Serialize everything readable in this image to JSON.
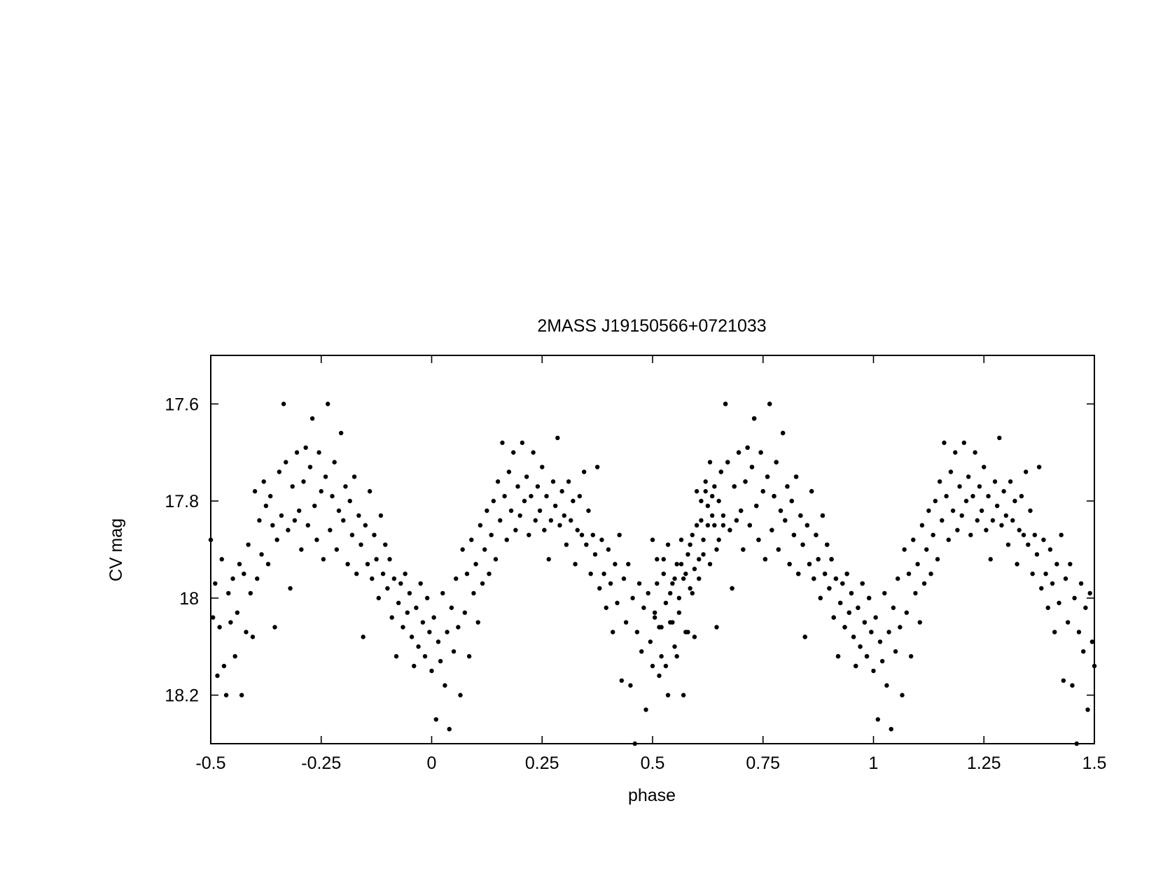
{
  "chart_data": {
    "type": "scatter",
    "title": "2MASS J19150566+0721033",
    "xlabel": "phase",
    "ylabel": "CV mag",
    "xlim": [
      -0.5,
      1.5
    ],
    "ylim": [
      18.3,
      17.5
    ],
    "y_axis_inverted": true,
    "grid": false,
    "legend": "none",
    "xticks": [
      -0.5,
      -0.25,
      0,
      0.25,
      0.5,
      0.75,
      1,
      1.25,
      1.5
    ],
    "xtick_labels": [
      "-0.5",
      "-0.25",
      "0",
      "0.25",
      "0.5",
      "0.75",
      "1",
      "1.25",
      "1.5"
    ],
    "yticks": [
      17.6,
      17.8,
      18,
      18.2
    ],
    "ytick_labels": [
      "17.6",
      "17.8",
      "18",
      "18.2"
    ],
    "marker_color": "#000000",
    "period_repeat": 1,
    "series": [
      {
        "points": [
          [
            -0.5,
            17.88
          ],
          [
            -0.495,
            18.04
          ],
          [
            -0.49,
            17.97
          ],
          [
            -0.485,
            18.16
          ],
          [
            -0.48,
            18.06
          ],
          [
            -0.475,
            17.92
          ],
          [
            -0.47,
            18.14
          ],
          [
            -0.465,
            18.2
          ],
          [
            -0.46,
            17.99
          ],
          [
            -0.455,
            18.05
          ],
          [
            -0.45,
            17.96
          ],
          [
            -0.445,
            18.12
          ],
          [
            -0.44,
            18.03
          ],
          [
            -0.435,
            17.93
          ],
          [
            -0.43,
            18.2
          ],
          [
            -0.425,
            17.95
          ],
          [
            -0.42,
            18.07
          ],
          [
            -0.415,
            17.89
          ],
          [
            -0.41,
            17.99
          ],
          [
            -0.405,
            18.08
          ],
          [
            -0.4,
            17.78
          ],
          [
            -0.395,
            17.96
          ],
          [
            -0.39,
            17.84
          ],
          [
            -0.385,
            17.91
          ],
          [
            -0.38,
            17.76
          ],
          [
            -0.375,
            17.81
          ],
          [
            -0.37,
            17.93
          ],
          [
            -0.365,
            17.79
          ],
          [
            -0.36,
            17.85
          ],
          [
            -0.355,
            18.06
          ],
          [
            -0.35,
            17.88
          ],
          [
            -0.345,
            17.74
          ],
          [
            -0.34,
            17.83
          ],
          [
            -0.335,
            17.6
          ],
          [
            -0.33,
            17.72
          ],
          [
            -0.325,
            17.86
          ],
          [
            -0.32,
            17.98
          ],
          [
            -0.315,
            17.77
          ],
          [
            -0.31,
            17.84
          ],
          [
            -0.305,
            17.7
          ],
          [
            -0.3,
            17.82
          ],
          [
            -0.295,
            17.9
          ],
          [
            -0.29,
            17.76
          ],
          [
            -0.285,
            17.69
          ],
          [
            -0.28,
            17.85
          ],
          [
            -0.275,
            17.73
          ],
          [
            -0.27,
            17.63
          ],
          [
            -0.265,
            17.81
          ],
          [
            -0.26,
            17.88
          ],
          [
            -0.255,
            17.7
          ],
          [
            -0.25,
            17.78
          ],
          [
            -0.245,
            17.92
          ],
          [
            -0.24,
            17.75
          ],
          [
            -0.235,
            17.6
          ],
          [
            -0.23,
            17.86
          ],
          [
            -0.225,
            17.79
          ],
          [
            -0.22,
            17.72
          ],
          [
            -0.215,
            17.9
          ],
          [
            -0.21,
            17.82
          ],
          [
            -0.205,
            17.66
          ],
          [
            -0.2,
            17.84
          ],
          [
            -0.195,
            17.77
          ],
          [
            -0.19,
            17.93
          ],
          [
            -0.185,
            17.8
          ],
          [
            -0.18,
            17.87
          ],
          [
            -0.175,
            17.75
          ],
          [
            -0.17,
            17.95
          ],
          [
            -0.165,
            17.83
          ],
          [
            -0.16,
            17.89
          ],
          [
            -0.155,
            18.08
          ],
          [
            -0.15,
            17.85
          ],
          [
            -0.145,
            17.93
          ],
          [
            -0.14,
            17.78
          ],
          [
            -0.135,
            17.96
          ],
          [
            -0.13,
            17.87
          ],
          [
            -0.125,
            17.92
          ],
          [
            -0.12,
            18.0
          ],
          [
            -0.115,
            17.83
          ],
          [
            -0.11,
            17.95
          ],
          [
            -0.105,
            17.89
          ],
          [
            -0.1,
            17.98
          ],
          [
            -0.095,
            17.92
          ],
          [
            -0.09,
            18.04
          ],
          [
            -0.085,
            17.96
          ],
          [
            -0.08,
            18.12
          ],
          [
            -0.075,
            18.01
          ],
          [
            -0.07,
            17.97
          ],
          [
            -0.065,
            18.06
          ],
          [
            -0.06,
            17.95
          ],
          [
            -0.055,
            18.03
          ],
          [
            -0.05,
            17.99
          ],
          [
            -0.045,
            18.08
          ],
          [
            -0.04,
            18.14
          ],
          [
            -0.035,
            18.02
          ],
          [
            -0.03,
            18.1
          ],
          [
            -0.025,
            17.97
          ],
          [
            -0.02,
            18.05
          ],
          [
            -0.015,
            18.12
          ],
          [
            -0.01,
            18.0
          ],
          [
            -0.005,
            18.07
          ],
          [
            0.0,
            18.15
          ],
          [
            0.005,
            18.04
          ],
          [
            0.01,
            18.25
          ],
          [
            0.015,
            18.09
          ],
          [
            0.02,
            18.13
          ],
          [
            0.025,
            17.99
          ],
          [
            0.03,
            18.18
          ],
          [
            0.035,
            18.07
          ],
          [
            0.04,
            18.27
          ],
          [
            0.045,
            18.02
          ],
          [
            0.05,
            18.11
          ],
          [
            0.055,
            17.96
          ],
          [
            0.06,
            18.06
          ],
          [
            0.065,
            18.2
          ],
          [
            0.07,
            17.9
          ],
          [
            0.075,
            18.03
          ],
          [
            0.08,
            17.95
          ],
          [
            0.085,
            18.12
          ],
          [
            0.09,
            17.88
          ],
          [
            0.095,
            17.99
          ],
          [
            0.1,
            17.93
          ],
          [
            0.105,
            18.05
          ],
          [
            0.11,
            17.85
          ],
          [
            0.115,
            17.97
          ],
          [
            0.12,
            17.9
          ],
          [
            0.125,
            17.82
          ],
          [
            0.13,
            17.95
          ],
          [
            0.135,
            17.87
          ],
          [
            0.14,
            17.8
          ],
          [
            0.145,
            17.92
          ],
          [
            0.15,
            17.76
          ],
          [
            0.155,
            17.84
          ],
          [
            0.16,
            17.68
          ],
          [
            0.165,
            17.79
          ],
          [
            0.17,
            17.88
          ],
          [
            0.175,
            17.74
          ],
          [
            0.18,
            17.82
          ],
          [
            0.185,
            17.7
          ],
          [
            0.19,
            17.86
          ],
          [
            0.195,
            17.77
          ],
          [
            0.2,
            17.83
          ],
          [
            0.205,
            17.68
          ],
          [
            0.21,
            17.8
          ],
          [
            0.215,
            17.75
          ],
          [
            0.22,
            17.87
          ],
          [
            0.225,
            17.79
          ],
          [
            0.23,
            17.7
          ],
          [
            0.235,
            17.84
          ],
          [
            0.24,
            17.77
          ],
          [
            0.245,
            17.82
          ],
          [
            0.25,
            17.73
          ],
          [
            0.255,
            17.86
          ],
          [
            0.26,
            17.79
          ],
          [
            0.265,
            17.92
          ],
          [
            0.27,
            17.84
          ],
          [
            0.275,
            17.76
          ],
          [
            0.28,
            17.81
          ],
          [
            0.285,
            17.67
          ],
          [
            0.29,
            17.85
          ],
          [
            0.295,
            17.78
          ],
          [
            0.3,
            17.83
          ],
          [
            0.305,
            17.89
          ],
          [
            0.31,
            17.76
          ],
          [
            0.315,
            17.84
          ],
          [
            0.32,
            17.8
          ],
          [
            0.325,
            17.93
          ],
          [
            0.33,
            17.86
          ],
          [
            0.335,
            17.79
          ],
          [
            0.34,
            17.87
          ],
          [
            0.345,
            17.74
          ],
          [
            0.35,
            17.89
          ],
          [
            0.355,
            17.82
          ],
          [
            0.36,
            17.95
          ],
          [
            0.365,
            17.87
          ],
          [
            0.37,
            17.91
          ],
          [
            0.375,
            17.73
          ],
          [
            0.38,
            17.98
          ],
          [
            0.385,
            17.88
          ],
          [
            0.39,
            17.95
          ],
          [
            0.395,
            18.02
          ],
          [
            0.4,
            17.9
          ],
          [
            0.405,
            17.97
          ],
          [
            0.41,
            18.07
          ],
          [
            0.415,
            17.93
          ],
          [
            0.42,
            18.01
          ],
          [
            0.425,
            17.87
          ],
          [
            0.43,
            18.17
          ],
          [
            0.435,
            17.96
          ],
          [
            0.44,
            18.05
          ],
          [
            0.445,
            17.93
          ],
          [
            0.45,
            18.18
          ],
          [
            0.455,
            18.0
          ],
          [
            0.46,
            18.3
          ],
          [
            0.465,
            18.07
          ],
          [
            0.47,
            17.97
          ],
          [
            0.475,
            18.11
          ],
          [
            0.48,
            18.02
          ],
          [
            0.485,
            18.23
          ],
          [
            0.49,
            17.99
          ],
          [
            0.495,
            18.09
          ],
          [
            0.5,
            18.14
          ],
          [
            0.505,
            18.03
          ],
          [
            0.51,
            17.92
          ],
          [
            0.515,
            18.06
          ],
          [
            0.52,
            18.12
          ],
          [
            0.525,
            17.95
          ],
          [
            0.53,
            18.01
          ],
          [
            0.535,
            17.89
          ],
          [
            0.54,
            18.05
          ],
          [
            0.545,
            17.97
          ],
          [
            0.55,
            18.1
          ],
          [
            0.555,
            17.93
          ],
          [
            0.56,
            18.0
          ],
          [
            0.565,
            17.88
          ],
          [
            0.57,
            17.96
          ],
          [
            0.575,
            18.07
          ],
          [
            0.58,
            17.91
          ],
          [
            0.585,
            17.98
          ],
          [
            0.59,
            17.87
          ],
          [
            0.595,
            17.94
          ],
          [
            0.6,
            17.85
          ],
          [
            0.605,
            17.92
          ],
          [
            0.61,
            17.8
          ],
          [
            0.615,
            17.88
          ],
          [
            0.62,
            17.78
          ],
          [
            0.625,
            17.85
          ],
          [
            0.63,
            17.72
          ],
          [
            0.635,
            17.83
          ],
          [
            0.64,
            17.77
          ],
          [
            0.645,
            17.9
          ],
          [
            0.65,
            17.8
          ],
          [
            0.655,
            17.74
          ],
          [
            0.66,
            17.85
          ],
          [
            0.665,
            17.6
          ],
          [
            0.67,
            17.72
          ],
          [
            0.675,
            17.86
          ],
          [
            0.68,
            17.98
          ],
          [
            0.685,
            17.77
          ],
          [
            0.69,
            17.84
          ],
          [
            0.695,
            17.7
          ],
          [
            0.7,
            17.82
          ],
          [
            0.705,
            17.9
          ],
          [
            0.71,
            17.76
          ],
          [
            0.715,
            17.69
          ],
          [
            0.72,
            17.85
          ],
          [
            0.725,
            17.73
          ],
          [
            0.73,
            17.63
          ],
          [
            0.735,
            17.81
          ],
          [
            0.74,
            17.88
          ],
          [
            0.745,
            17.7
          ],
          [
            0.75,
            17.78
          ],
          [
            0.755,
            17.92
          ],
          [
            0.76,
            17.75
          ],
          [
            0.765,
            17.6
          ],
          [
            0.77,
            17.86
          ],
          [
            0.775,
            17.79
          ],
          [
            0.78,
            17.72
          ],
          [
            0.785,
            17.9
          ],
          [
            0.79,
            17.82
          ],
          [
            0.795,
            17.66
          ],
          [
            0.8,
            17.84
          ],
          [
            0.805,
            17.77
          ],
          [
            0.81,
            17.93
          ],
          [
            0.815,
            17.8
          ],
          [
            0.82,
            17.87
          ],
          [
            0.825,
            17.75
          ],
          [
            0.83,
            17.95
          ],
          [
            0.835,
            17.83
          ],
          [
            0.84,
            17.89
          ],
          [
            0.845,
            18.08
          ],
          [
            0.85,
            17.85
          ],
          [
            0.855,
            17.93
          ],
          [
            0.86,
            17.78
          ],
          [
            0.865,
            17.96
          ],
          [
            0.87,
            17.87
          ],
          [
            0.875,
            17.92
          ],
          [
            0.88,
            18.0
          ],
          [
            0.885,
            17.83
          ],
          [
            0.89,
            17.95
          ],
          [
            0.895,
            17.89
          ],
          [
            0.9,
            17.98
          ],
          [
            0.905,
            17.92
          ],
          [
            0.91,
            18.04
          ],
          [
            0.915,
            17.96
          ],
          [
            0.92,
            18.12
          ],
          [
            0.925,
            18.01
          ],
          [
            0.93,
            17.97
          ],
          [
            0.935,
            18.06
          ],
          [
            0.94,
            17.95
          ],
          [
            0.945,
            18.03
          ],
          [
            0.95,
            17.99
          ],
          [
            0.955,
            18.08
          ],
          [
            0.96,
            18.14
          ],
          [
            0.965,
            18.02
          ],
          [
            0.97,
            18.1
          ],
          [
            0.975,
            17.97
          ],
          [
            0.98,
            18.05
          ],
          [
            0.985,
            18.12
          ],
          [
            0.99,
            18.0
          ],
          [
            0.995,
            18.07
          ]
        ]
      }
    ]
  }
}
